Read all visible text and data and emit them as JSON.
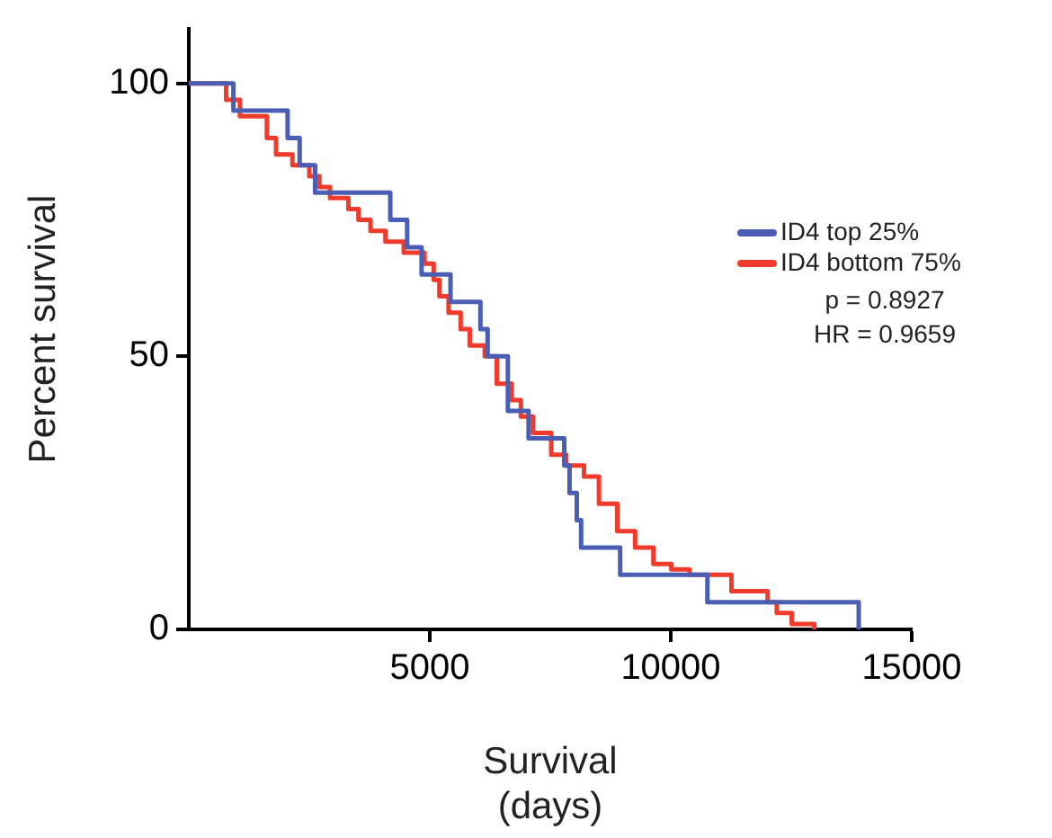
{
  "chart_data": {
    "type": "step",
    "xlabel": "Survival\n(days)",
    "ylabel": "Percent survival",
    "xlim": [
      0,
      15000
    ],
    "xticks": [
      5000,
      10000,
      15000
    ],
    "ylim": [
      0,
      110
    ],
    "yticks": [
      0,
      50,
      100
    ],
    "grid": false,
    "legend": "right",
    "marker": "none",
    "line_style": "solid",
    "annotations": [
      "p = 0.8927",
      "HR = 0.9659"
    ],
    "series": [
      {
        "name": "ID4 top 25%",
        "color": "#4a5fb3",
        "x": [
          0,
          925,
          2050,
          2300,
          2620,
          4180,
          4530,
          4830,
          5430,
          6050,
          6200,
          6620,
          7050,
          7790,
          7900,
          8050,
          8140,
          8950,
          10760,
          13900
        ],
        "values": [
          100,
          95,
          90,
          85,
          80,
          75,
          70,
          65,
          60,
          55,
          50,
          40,
          35,
          30,
          25,
          20,
          15,
          10,
          5,
          0
        ]
      },
      {
        "name": "ID4 bottom 75%",
        "color": "#ee3b2b",
        "x": [
          0,
          775,
          1060,
          1620,
          1810,
          2150,
          2500,
          2710,
          2930,
          3310,
          3520,
          3770,
          4080,
          4460,
          4890,
          5080,
          5200,
          5390,
          5640,
          5830,
          6140,
          6390,
          6700,
          6890,
          7140,
          7520,
          7830,
          8200,
          8510,
          8890,
          9260,
          9640,
          10010,
          10390,
          11260,
          12010,
          12200,
          12510,
          12980
        ],
        "values": [
          100,
          97,
          94,
          90,
          87,
          85,
          83,
          81,
          79,
          77,
          75,
          73,
          71,
          69,
          67,
          64,
          61,
          58,
          55,
          52,
          50,
          45,
          42,
          39,
          36,
          32,
          30,
          28,
          23,
          18,
          15,
          12,
          11,
          10,
          7,
          5,
          3,
          1,
          0
        ]
      }
    ]
  }
}
